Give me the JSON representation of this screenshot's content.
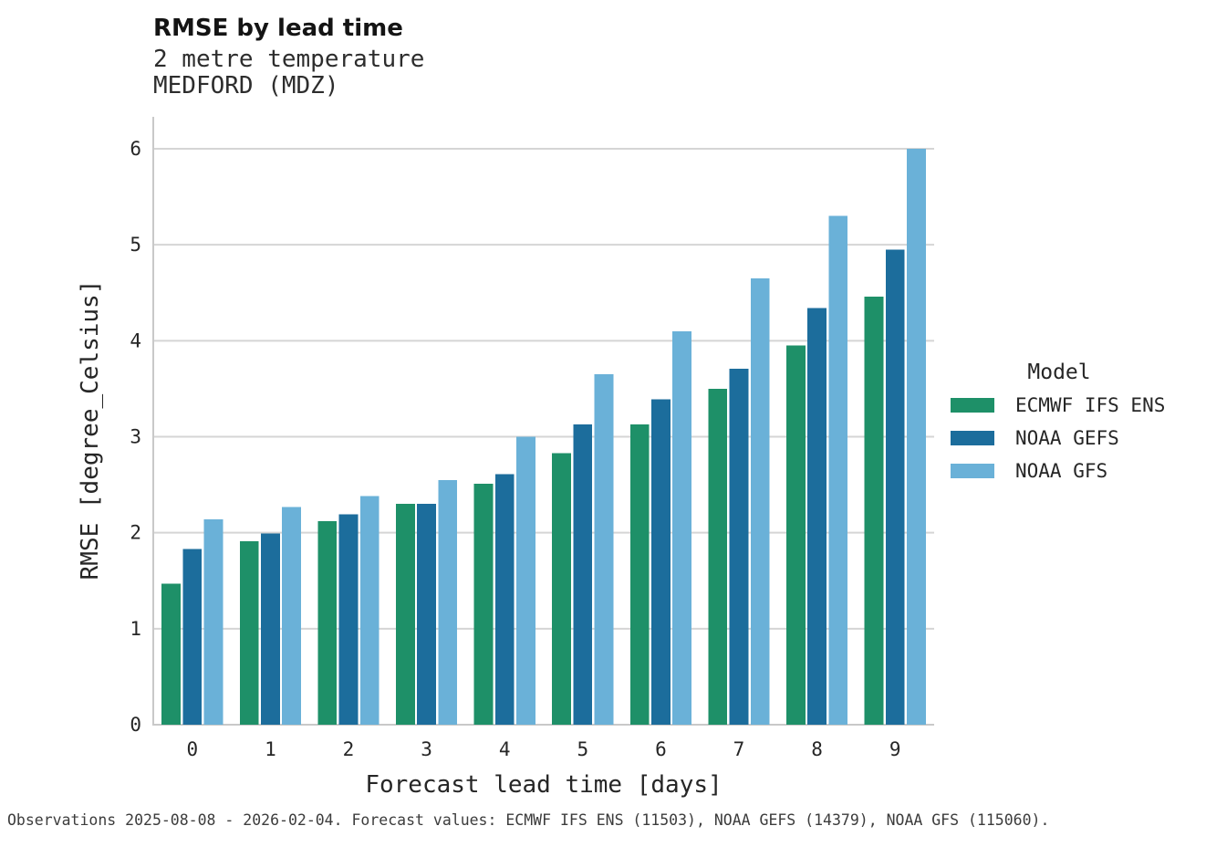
{
  "header": {
    "title": "RMSE by lead time",
    "subtitle_variable": "2 metre temperature",
    "subtitle_station": "MEDFORD (MDZ)"
  },
  "legend": {
    "title": "Model"
  },
  "footer": {
    "caption": "Observations 2025-08-08 - 2026-02-04. Forecast values: ECMWF IFS ENS (11503), NOAA GEFS (14379), NOAA GFS (115060)."
  },
  "colors": {
    "ecmwf_ifs_ens": "#1e9068",
    "noaa_gefs": "#1c6d9c",
    "noaa_gfs": "#6ab1d8",
    "gridline": "#d5d5d5",
    "spine": "#c9c9c9",
    "text": "#262626"
  },
  "chart_data": {
    "type": "bar",
    "title": "RMSE by lead time",
    "subtitle": [
      "2 metre temperature",
      "MEDFORD (MDZ)"
    ],
    "categories": [
      "0",
      "1",
      "2",
      "3",
      "4",
      "5",
      "6",
      "7",
      "8",
      "9"
    ],
    "series": [
      {
        "name": "ECMWF IFS ENS",
        "color": "#1e9068",
        "values": [
          1.47,
          1.91,
          2.12,
          2.3,
          2.51,
          2.83,
          3.13,
          3.5,
          3.95,
          4.46
        ]
      },
      {
        "name": "NOAA GEFS",
        "color": "#1c6d9c",
        "values": [
          1.83,
          1.99,
          2.19,
          2.3,
          2.61,
          3.13,
          3.39,
          3.71,
          4.34,
          4.95
        ]
      },
      {
        "name": "NOAA GFS",
        "color": "#6ab1d8",
        "values": [
          2.14,
          2.27,
          2.38,
          2.55,
          3.0,
          3.65,
          4.1,
          4.65,
          5.3,
          6.0
        ]
      }
    ],
    "xlabel": "Forecast lead time [days]",
    "ylabel": "RMSE [degree_Celsius]",
    "ylim": [
      0,
      6.33
    ],
    "yticks": [
      0,
      1,
      2,
      3,
      4,
      5,
      6
    ],
    "grid": true,
    "legend_title": "Model",
    "legend_position": "right"
  }
}
